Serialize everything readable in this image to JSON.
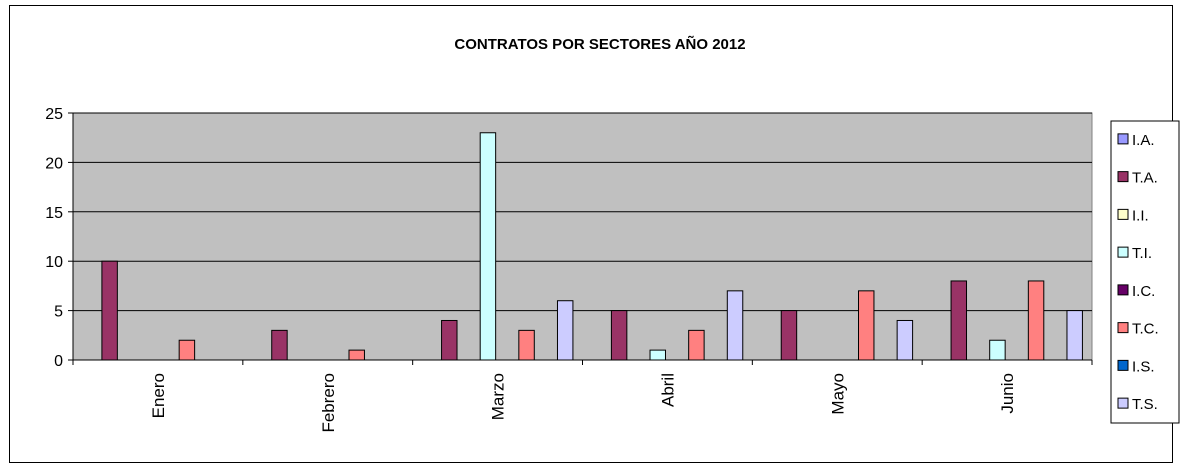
{
  "chart_data": {
    "type": "bar",
    "title": "CONTRATOS POR SECTORES AÑO 2012",
    "categories": [
      "Enero",
      "Febrero",
      "Marzo",
      "Abril",
      "Mayo",
      "Junio"
    ],
    "ylim": [
      0,
      25
    ],
    "yticks": [
      0,
      5,
      10,
      15,
      20,
      25
    ],
    "grid": true,
    "legend_position": "right",
    "plot_background": "#c0c0c0",
    "series": [
      {
        "name": "I.A.",
        "color": "#9999ff",
        "values": [
          0,
          0,
          0,
          0,
          0,
          0
        ]
      },
      {
        "name": "T.A.",
        "color": "#993366",
        "values": [
          10,
          3,
          4,
          5,
          5,
          8
        ]
      },
      {
        "name": "I.I.",
        "color": "#ffffcc",
        "values": [
          0,
          0,
          0,
          0,
          0,
          0
        ]
      },
      {
        "name": "T.I.",
        "color": "#ccffff",
        "values": [
          0,
          0,
          23,
          1,
          0,
          2
        ]
      },
      {
        "name": "I.C.",
        "color": "#660066",
        "values": [
          0,
          0,
          0,
          0,
          0,
          0
        ]
      },
      {
        "name": "T.C.",
        "color": "#ff8080",
        "values": [
          2,
          1,
          3,
          3,
          7,
          8
        ]
      },
      {
        "name": "I.S.",
        "color": "#0066cc",
        "values": [
          0,
          0,
          0,
          0,
          0,
          0
        ]
      },
      {
        "name": "T.S.",
        "color": "#ccccff",
        "values": [
          0,
          0,
          6,
          7,
          4,
          5
        ]
      }
    ]
  }
}
